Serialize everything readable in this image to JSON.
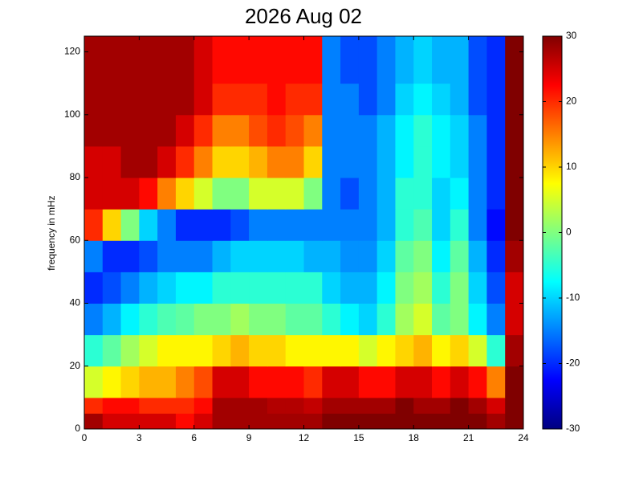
{
  "chart_data": {
    "type": "heatmap",
    "title": "2026 Aug 02",
    "y_label": "frequency in mHz",
    "x": [
      0,
      1,
      2,
      3,
      4,
      5,
      6,
      7,
      8,
      9,
      10,
      11,
      12,
      13,
      14,
      15,
      16,
      17,
      18,
      19,
      20,
      21,
      22,
      23,
      24
    ],
    "y": [
      0,
      5,
      10,
      20,
      30,
      40,
      50,
      60,
      70,
      80,
      90,
      100,
      110,
      125
    ],
    "z": [
      [
        28,
        25,
        25,
        25,
        25,
        22,
        25,
        28,
        28,
        28,
        28,
        28,
        28,
        30,
        30,
        30,
        30,
        30,
        30,
        30,
        30,
        30,
        28,
        30
      ],
      [
        20,
        22,
        22,
        20,
        20,
        20,
        22,
        28,
        28,
        28,
        27,
        27,
        26,
        28,
        28,
        28,
        28,
        30,
        28,
        28,
        30,
        28,
        25,
        30
      ],
      [
        5,
        8,
        10,
        12,
        12,
        15,
        18,
        25,
        25,
        22,
        22,
        22,
        20,
        25,
        25,
        22,
        22,
        25,
        25,
        22,
        25,
        22,
        15,
        30
      ],
      [
        -5,
        -2,
        2,
        5,
        8,
        8,
        8,
        10,
        12,
        10,
        10,
        8,
        8,
        8,
        8,
        5,
        8,
        10,
        12,
        8,
        10,
        5,
        -5,
        28
      ],
      [
        -15,
        -12,
        -8,
        -5,
        -3,
        -2,
        0,
        0,
        2,
        0,
        0,
        -2,
        -2,
        -5,
        -8,
        -10,
        -5,
        2,
        5,
        -2,
        0,
        -8,
        -15,
        25
      ],
      [
        -20,
        -18,
        -15,
        -12,
        -10,
        -8,
        -8,
        -5,
        -5,
        -5,
        -5,
        -5,
        -5,
        -10,
        -12,
        -12,
        -8,
        0,
        2,
        -5,
        0,
        -10,
        -18,
        25
      ],
      [
        -15,
        -20,
        -20,
        -18,
        -15,
        -15,
        -15,
        -12,
        -10,
        -10,
        -10,
        -10,
        -12,
        -12,
        -14,
        -14,
        -10,
        -2,
        0,
        -8,
        -2,
        -12,
        -20,
        28
      ],
      [
        20,
        10,
        0,
        -10,
        -15,
        -20,
        -20,
        -20,
        -18,
        -15,
        -15,
        -15,
        -15,
        -15,
        -15,
        -15,
        -12,
        -5,
        -3,
        -10,
        -5,
        -15,
        -22,
        30
      ],
      [
        25,
        25,
        25,
        22,
        15,
        10,
        5,
        0,
        0,
        5,
        5,
        5,
        0,
        -15,
        -18,
        -15,
        -12,
        -5,
        -5,
        -10,
        -8,
        -15,
        -20,
        30
      ],
      [
        25,
        25,
        28,
        28,
        25,
        20,
        15,
        10,
        10,
        12,
        15,
        15,
        10,
        -15,
        -15,
        -15,
        -12,
        -8,
        -5,
        -8,
        -10,
        -15,
        -20,
        30
      ],
      [
        28,
        28,
        28,
        28,
        28,
        25,
        20,
        15,
        15,
        18,
        20,
        18,
        15,
        -15,
        -15,
        -15,
        -12,
        -8,
        -5,
        -8,
        -10,
        -15,
        -20,
        30
      ],
      [
        28,
        28,
        28,
        28,
        28,
        28,
        25,
        20,
        20,
        20,
        22,
        20,
        20,
        -15,
        -15,
        -18,
        -15,
        -10,
        -8,
        -10,
        -12,
        -18,
        -20,
        30
      ],
      [
        28,
        28,
        28,
        28,
        28,
        28,
        25,
        22,
        22,
        22,
        22,
        22,
        22,
        -15,
        -18,
        -18,
        -15,
        -12,
        -10,
        -12,
        -12,
        -18,
        -20,
        30
      ]
    ],
    "xlim": [
      0,
      24
    ],
    "xticks": [
      0,
      3,
      6,
      9,
      12,
      15,
      18,
      21,
      24
    ],
    "ylim": [
      0,
      125
    ],
    "yticks": [
      0,
      20,
      40,
      60,
      80,
      100,
      120
    ],
    "clim": [
      -30,
      30
    ],
    "cticks": [
      -30,
      -20,
      -10,
      0,
      10,
      20,
      30
    ],
    "colormap": "jet"
  }
}
